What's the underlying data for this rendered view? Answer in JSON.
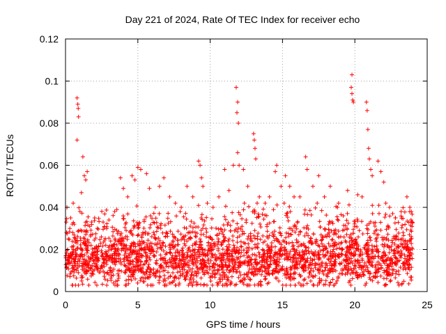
{
  "chart_data": {
    "type": "scatter",
    "title": "Day 221 of 2024, Rate Of TEC Index for receiver echo",
    "xlabel": "GPS time / hours",
    "ylabel": "ROTI / TECUs",
    "xlim": [
      0,
      25
    ],
    "ylim": [
      0,
      0.12
    ],
    "x_ticks": [
      "0",
      "5",
      "10",
      "15",
      "20",
      "25"
    ],
    "y_ticks": [
      "0",
      "0.02",
      "0.04",
      "0.06",
      "0.08",
      "0.1",
      "0.12"
    ],
    "grid": true,
    "marker": "+",
    "series": [
      {
        "color": "#ff0000",
        "points": [
          [
            0.05,
            0.033
          ],
          [
            0.1,
            0.04
          ],
          [
            0.2,
            0.025
          ],
          [
            0.3,
            0.03
          ],
          [
            0.5,
            0.028
          ],
          [
            0.6,
            0.032
          ],
          [
            0.8,
            0.092
          ],
          [
            0.85,
            0.089
          ],
          [
            0.88,
            0.087
          ],
          [
            0.9,
            0.083
          ],
          [
            0.8,
            0.072
          ],
          [
            1.2,
            0.064
          ],
          [
            1.3,
            0.055
          ],
          [
            1.4,
            0.053
          ],
          [
            1.5,
            0.057
          ],
          [
            1.1,
            0.047
          ],
          [
            1.0,
            0.038
          ],
          [
            1.8,
            0.033
          ],
          [
            2.2,
            0.03
          ],
          [
            2.6,
            0.033
          ],
          [
            3.0,
            0.034
          ],
          [
            3.4,
            0.038
          ],
          [
            3.8,
            0.054
          ],
          [
            4.0,
            0.049
          ],
          [
            4.3,
            0.045
          ],
          [
            4.6,
            0.055
          ],
          [
            4.8,
            0.053
          ],
          [
            5.0,
            0.059
          ],
          [
            5.2,
            0.058
          ],
          [
            5.6,
            0.056
          ],
          [
            5.8,
            0.049
          ],
          [
            6.2,
            0.04
          ],
          [
            6.5,
            0.05
          ],
          [
            6.8,
            0.054
          ],
          [
            7.2,
            0.045
          ],
          [
            7.6,
            0.042
          ],
          [
            8.0,
            0.04
          ],
          [
            8.4,
            0.05
          ],
          [
            8.8,
            0.045
          ],
          [
            9.2,
            0.062
          ],
          [
            9.3,
            0.06
          ],
          [
            9.4,
            0.054
          ],
          [
            9.5,
            0.05
          ],
          [
            9.8,
            0.042
          ],
          [
            10.2,
            0.04
          ],
          [
            10.6,
            0.045
          ],
          [
            11.0,
            0.058
          ],
          [
            11.3,
            0.048
          ],
          [
            11.6,
            0.06
          ],
          [
            11.8,
            0.097
          ],
          [
            11.9,
            0.09
          ],
          [
            11.85,
            0.085
          ],
          [
            11.95,
            0.08
          ],
          [
            12.0,
            0.06
          ],
          [
            11.9,
            0.066
          ],
          [
            12.3,
            0.058
          ],
          [
            12.6,
            0.05
          ],
          [
            13.0,
            0.075
          ],
          [
            13.05,
            0.072
          ],
          [
            13.1,
            0.068
          ],
          [
            13.15,
            0.063
          ],
          [
            13.4,
            0.045
          ],
          [
            13.8,
            0.042
          ],
          [
            14.1,
            0.045
          ],
          [
            14.5,
            0.057
          ],
          [
            14.6,
            0.06
          ],
          [
            14.9,
            0.05
          ],
          [
            15.2,
            0.055
          ],
          [
            15.5,
            0.05
          ],
          [
            15.8,
            0.045
          ],
          [
            16.2,
            0.045
          ],
          [
            16.6,
            0.064
          ],
          [
            16.7,
            0.058
          ],
          [
            17.1,
            0.05
          ],
          [
            17.5,
            0.055
          ],
          [
            17.9,
            0.045
          ],
          [
            18.3,
            0.05
          ],
          [
            18.8,
            0.04
          ],
          [
            19.2,
            0.036
          ],
          [
            19.5,
            0.048
          ],
          [
            19.8,
            0.103
          ],
          [
            19.75,
            0.097
          ],
          [
            19.8,
            0.094
          ],
          [
            19.85,
            0.091
          ],
          [
            19.9,
            0.09
          ],
          [
            20.2,
            0.046
          ],
          [
            20.5,
            0.045
          ],
          [
            20.8,
            0.09
          ],
          [
            20.85,
            0.086
          ],
          [
            20.9,
            0.077
          ],
          [
            20.95,
            0.068
          ],
          [
            21.0,
            0.063
          ],
          [
            21.1,
            0.058
          ],
          [
            21.2,
            0.055
          ],
          [
            21.6,
            0.062
          ],
          [
            21.8,
            0.057
          ],
          [
            22.0,
            0.052
          ],
          [
            22.4,
            0.04
          ],
          [
            22.8,
            0.035
          ],
          [
            23.2,
            0.038
          ],
          [
            23.6,
            0.045
          ],
          [
            23.8,
            0.04
          ],
          [
            23.9,
            0.038
          ]
        ],
        "cluster": {
          "description_values": "dense band of samples",
          "x_range": [
            0,
            24
          ],
          "y_range": [
            0.005,
            0.035
          ],
          "typical_y": 0.014
        }
      }
    ]
  }
}
